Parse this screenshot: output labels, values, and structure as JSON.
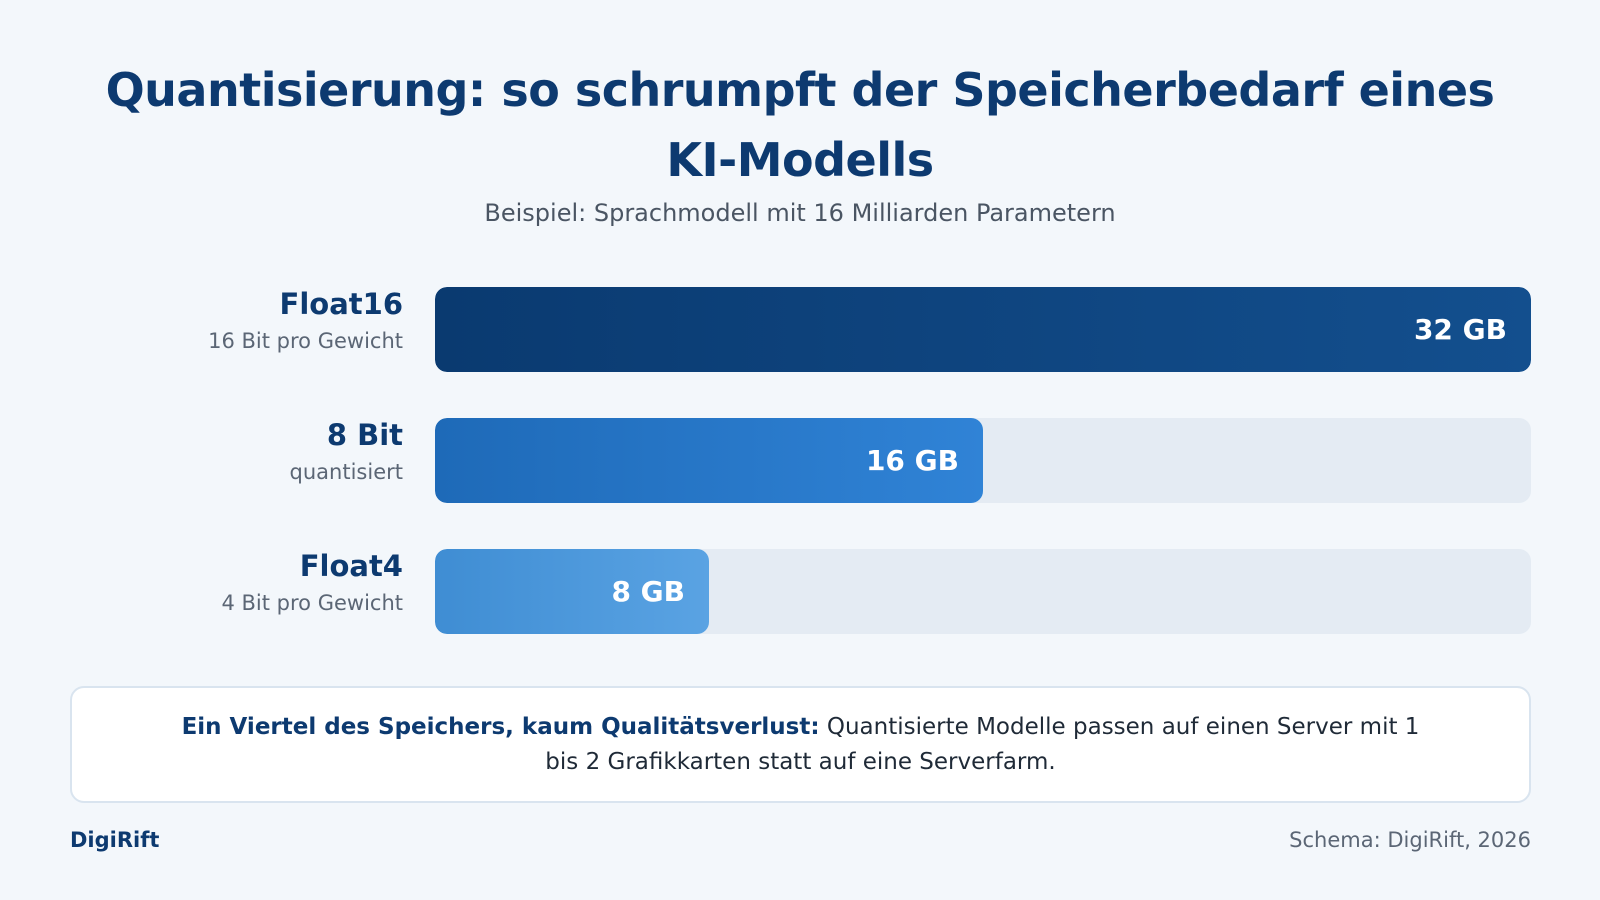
{
  "header": {
    "title": "Quantisierung: so schrumpft der Speicherbedarf eines KI-Modells",
    "subtitle": "Beispiel: Sprachmodell mit 16 Milliarden Parametern"
  },
  "chart_data": {
    "type": "bar",
    "orientation": "horizontal",
    "unit": "GB",
    "xlim": [
      0,
      32
    ],
    "grid": false,
    "legend": "none",
    "categories": [
      "Float16",
      "8 Bit",
      "Float4"
    ],
    "category_sublabels": [
      "16 Bit pro Gewicht",
      "quantisiert",
      "4 Bit pro Gewicht"
    ],
    "values": [
      32,
      16,
      8
    ],
    "value_labels": [
      "32 GB",
      "16 GB",
      "8 GB"
    ],
    "colors": [
      [
        "#0a3a70",
        "#134f8e"
      ],
      [
        "#1e6ab8",
        "#3083d6"
      ],
      [
        "#3f8dd3",
        "#5aa3e3"
      ]
    ],
    "track_color": "#e4ebf3"
  },
  "note": {
    "strong": "Ein Viertel des Speichers, kaum Qualitätsverlust:",
    "text": " Quantisierte Modelle passen auf einen Server mit 1 bis 2 Grafikkarten statt auf eine Serverfarm."
  },
  "footer": {
    "brand": "DigiRift",
    "source": "Schema: DigiRift, 2026"
  }
}
